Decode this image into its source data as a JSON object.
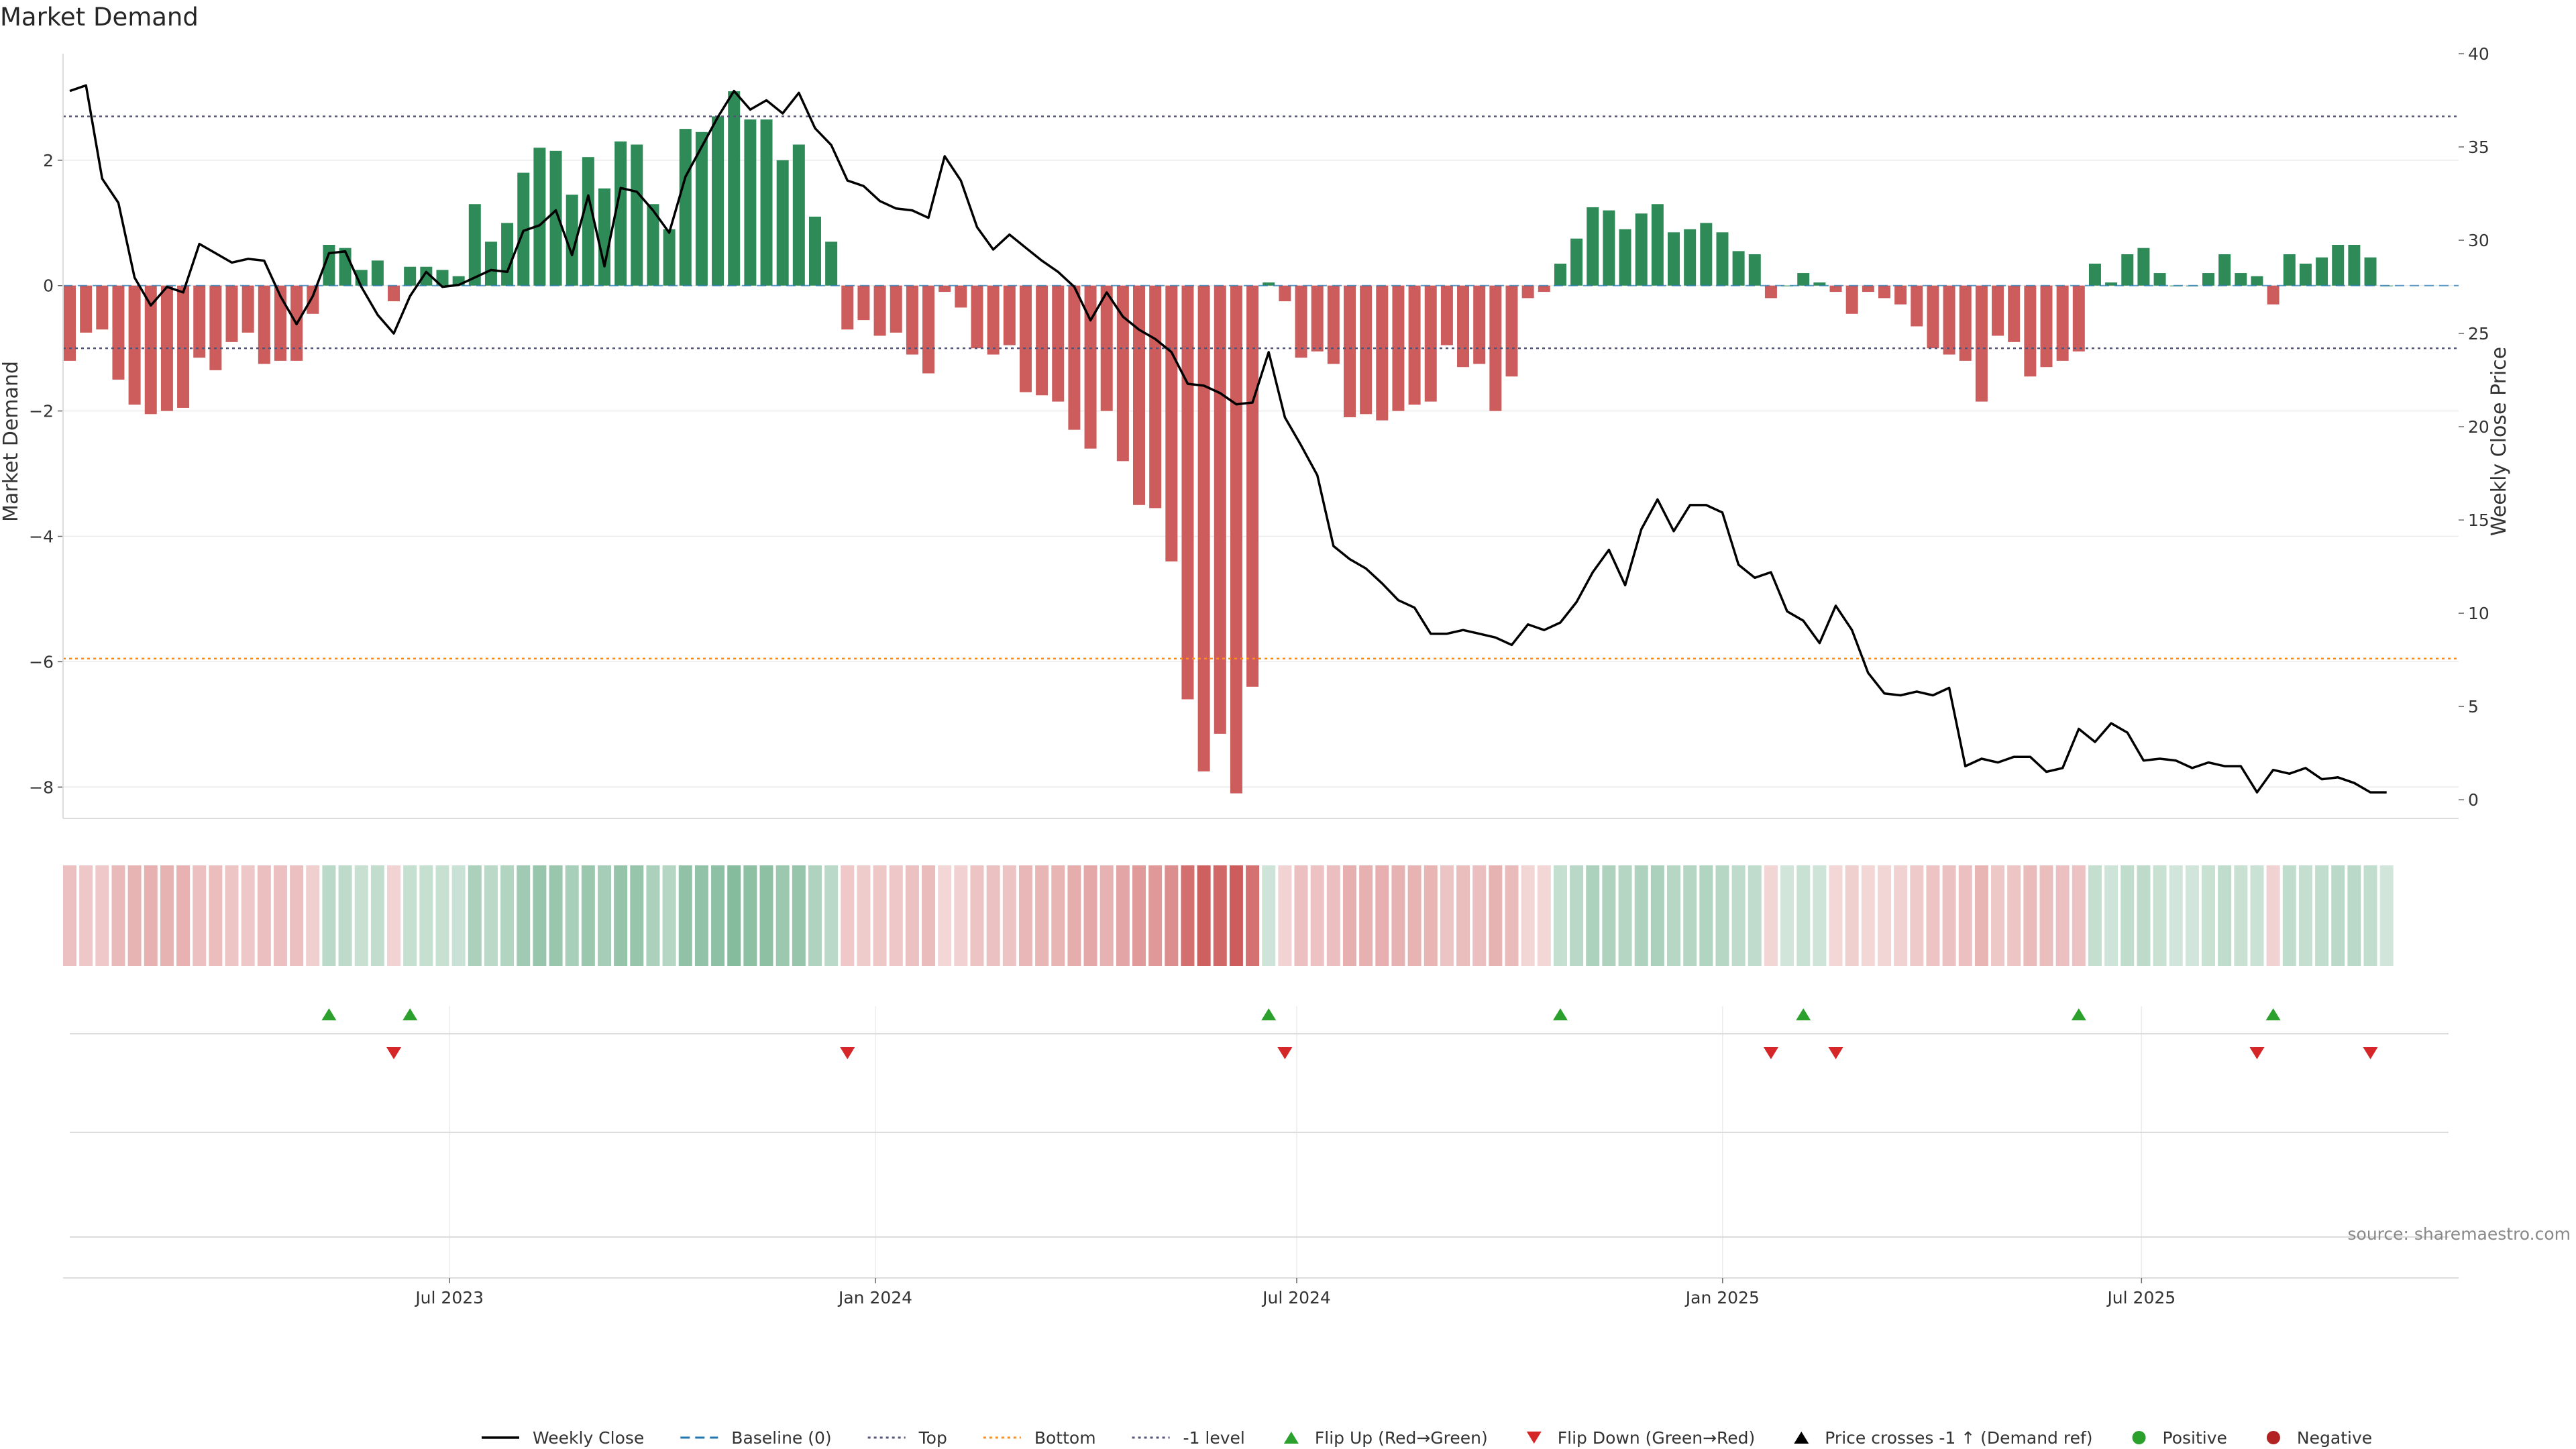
{
  "chart_data": {
    "type": "bar",
    "title": "Market Demand",
    "ylabel": "Market Demand",
    "y2label": "Weekly Close Price",
    "ylim": [
      -8.5,
      3.7
    ],
    "y2lim": [
      -1.0,
      40.0
    ],
    "yticks": [
      2,
      0,
      -2,
      -4,
      -6,
      -8
    ],
    "ytick_labels": [
      "2",
      "0",
      "−2",
      "−4",
      "−6",
      "−8"
    ],
    "y2ticks": [
      40,
      35,
      30,
      25,
      20,
      15,
      10,
      5,
      0
    ],
    "y2tick_labels": [
      "40",
      "35",
      "30",
      "25",
      "20",
      "15",
      "10",
      "5",
      "0"
    ],
    "x_start": "2023-01-15",
    "x_end": "2025-11-15",
    "xticks": [
      "2023-07-01",
      "2024-01-01",
      "2024-07-01",
      "2025-01-01",
      "2025-07-01"
    ],
    "xtick_labels": [
      "Jul 2023",
      "Jan 2024",
      "Jul 2024",
      "Jan 2025",
      "Jul 2025"
    ],
    "first_week": "2023-01-15",
    "demand": [
      -1.2,
      -0.75,
      -0.7,
      -1.5,
      -1.9,
      -2.05,
      -2.0,
      -1.95,
      -1.15,
      -1.35,
      -0.9,
      -0.75,
      -1.25,
      -1.2,
      -1.2,
      -0.45,
      0.65,
      0.6,
      0.25,
      0.4,
      -0.25,
      0.3,
      0.3,
      0.25,
      0.15,
      1.3,
      0.7,
      1.0,
      1.8,
      2.2,
      2.15,
      1.45,
      2.05,
      1.55,
      2.3,
      2.25,
      1.3,
      0.9,
      2.5,
      2.45,
      2.7,
      3.1,
      2.65,
      2.65,
      2.0,
      2.25,
      1.1,
      0.7,
      -0.7,
      -0.55,
      -0.8,
      -0.75,
      -1.1,
      -1.4,
      -0.1,
      -0.35,
      -1.0,
      -1.1,
      -0.95,
      -1.7,
      -1.75,
      -1.85,
      -2.3,
      -2.6,
      -2.0,
      -2.8,
      -3.5,
      -3.55,
      -4.4,
      -6.6,
      -7.75,
      -7.15,
      -8.1,
      -6.4,
      0.05,
      -0.25,
      -1.15,
      -1.05,
      -1.25,
      -2.1,
      -2.05,
      -2.15,
      -2.0,
      -1.9,
      -1.85,
      -0.95,
      -1.3,
      -1.25,
      -2.0,
      -1.45,
      -0.2,
      -0.1,
      0.35,
      0.75,
      1.25,
      1.2,
      0.9,
      1.15,
      1.3,
      0.85,
      0.9,
      1.0,
      0.85,
      0.55,
      0.5,
      -0.2,
      0.0,
      0.2,
      0.05,
      -0.1,
      -0.45,
      -0.1,
      -0.2,
      -0.3,
      -0.65,
      -1.0,
      -1.1,
      -1.2,
      -1.85,
      -0.8,
      -0.9,
      -1.45,
      -1.3,
      -1.2,
      -1.05,
      0.35,
      0.05,
      0.5,
      0.6,
      0.2,
      0.0,
      0.0,
      0.2,
      0.5,
      0.2,
      0.15,
      -0.3,
      0.5,
      0.35,
      0.45,
      0.65,
      0.65,
      0.45,
      0.0
    ],
    "close": [
      38.0,
      38.3,
      33.3,
      32.0,
      28.0,
      26.5,
      27.5,
      27.2,
      29.8,
      29.3,
      28.8,
      29.0,
      28.9,
      27.0,
      25.5,
      27.0,
      29.3,
      29.4,
      27.5,
      26.0,
      25.0,
      27.0,
      28.3,
      27.5,
      27.6,
      28.0,
      28.4,
      28.3,
      30.5,
      30.8,
      31.6,
      29.2,
      32.4,
      28.6,
      32.8,
      32.6,
      31.6,
      30.4,
      33.4,
      35.0,
      36.6,
      38.0,
      37.0,
      37.5,
      36.8,
      37.9,
      36.0,
      35.1,
      33.2,
      32.9,
      32.1,
      31.7,
      31.6,
      31.2,
      34.5,
      33.2,
      30.7,
      29.5,
      30.3,
      29.6,
      28.9,
      28.3,
      27.5,
      25.7,
      27.2,
      25.9,
      25.2,
      24.7,
      24.0,
      22.3,
      22.2,
      21.8,
      21.2,
      21.3,
      24.0,
      20.5,
      19.0,
      17.4,
      13.6,
      12.9,
      12.4,
      11.6,
      10.7,
      10.3,
      8.9,
      8.9,
      9.1,
      8.9,
      8.7,
      8.3,
      9.4,
      9.1,
      9.5,
      10.6,
      12.2,
      13.4,
      11.5,
      14.5,
      16.1,
      14.4,
      15.8,
      15.8,
      15.4,
      12.6,
      11.9,
      12.2,
      10.1,
      9.6,
      8.4,
      10.4,
      9.1,
      6.8,
      5.7,
      5.6,
      5.8,
      5.6,
      6.0,
      1.8,
      2.2,
      2.0,
      2.3,
      2.3,
      1.5,
      1.7,
      3.8,
      3.1,
      4.1,
      3.6,
      2.1,
      2.2,
      2.1,
      1.7,
      2.0,
      1.8,
      1.8,
      0.4,
      1.6,
      1.4,
      1.7,
      1.1,
      1.2,
      0.9,
      0.4,
      0.4
    ],
    "top_level": 2.7,
    "bottom_level": -5.95,
    "neg1_level": -1.0,
    "color_positive": "#2e8b57",
    "color_negative": "#cd5c5c",
    "color_flip_up": "#2ca02c",
    "color_flip_down": "#d62728",
    "color_top_line": "#555577",
    "color_bottom_line": "#ff8c1a",
    "color_baseline": "#1f77b4",
    "flip_up_weeks": [
      16,
      21,
      74,
      92,
      107,
      124,
      136
    ],
    "flip_down_weeks": [
      20,
      48,
      75,
      105,
      109,
      135,
      142
    ],
    "source_text": "source: sharemaestro.com",
    "legend": [
      {
        "key": "weekly-close",
        "label": "Weekly Close",
        "marker": "solid-line",
        "color": "#000000"
      },
      {
        "key": "baseline",
        "label": "Baseline (0)",
        "marker": "dashed-line",
        "color": "#1f77b4"
      },
      {
        "key": "top",
        "label": "Top",
        "marker": "dotted-line",
        "color": "#555577"
      },
      {
        "key": "bottom",
        "label": "Bottom",
        "marker": "dotted-line",
        "color": "#ff8c1a"
      },
      {
        "key": "neg1",
        "label": "-1 level",
        "marker": "dotted-line",
        "color": "#555577"
      },
      {
        "key": "flip-up",
        "label": "Flip Up (Red→Green)",
        "marker": "triangle-up",
        "color": "#2ca02c"
      },
      {
        "key": "flip-down",
        "label": "Flip Down (Green→Red)",
        "marker": "triangle-down",
        "color": "#d62728"
      },
      {
        "key": "price-cross",
        "label": "Price crosses -1 ↑ (Demand ref)",
        "marker": "triangle-up",
        "color": "#000000"
      },
      {
        "key": "positive",
        "label": "Positive",
        "marker": "circle",
        "color": "#2ca02c"
      },
      {
        "key": "negative",
        "label": "Negative",
        "marker": "circle",
        "color": "#b22222"
      }
    ]
  }
}
